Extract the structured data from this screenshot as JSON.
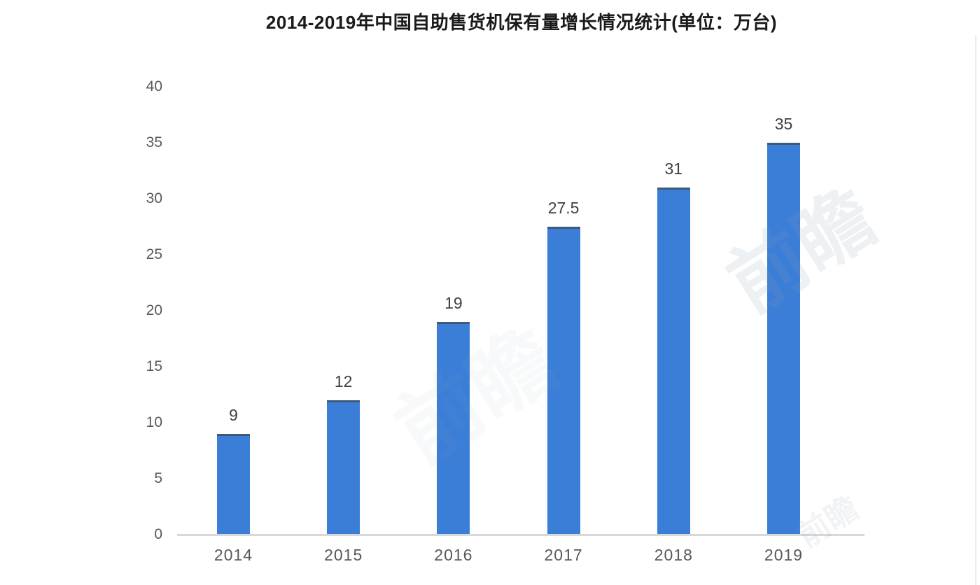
{
  "page": {
    "background": "#ffffff"
  },
  "watermark": {
    "text": "前瞻",
    "color": "#8fa0b5"
  },
  "chart_data": {
    "type": "bar",
    "title": "2014-2019年中国自助售货机保有量增长情况统计(单位：万台)",
    "categories": [
      "2014",
      "2015",
      "2016",
      "2017",
      "2018",
      "2019"
    ],
    "values": [
      9,
      12,
      19,
      27.5,
      31,
      35
    ],
    "value_labels": [
      "9",
      "12",
      "19",
      "27.5",
      "31",
      "35"
    ],
    "xlabel": "",
    "ylabel": "",
    "ylim": [
      0,
      40
    ],
    "yticks": [
      0,
      5,
      10,
      15,
      20,
      25,
      30,
      35,
      40
    ],
    "grid": false,
    "legend": false,
    "bar_color": "#3b7ed8",
    "bar_top_edge_color": "#3f5a78",
    "axis_line_color": "#d8d8d8",
    "ytick_color": "#595959",
    "xtick_color": "#595959",
    "value_label_color": "#404040",
    "title_color": "#1a1a1a"
  }
}
